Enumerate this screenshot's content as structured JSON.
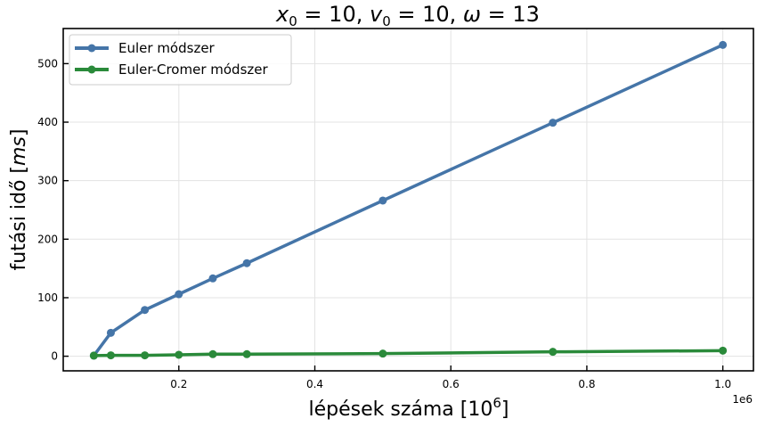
{
  "chart_data": {
    "type": "line",
    "title": "x₀ = 10, v₀ = 10, ω = 13",
    "title_parts": {
      "a": "x",
      "a_sub": "0",
      "a_val": "10",
      "b": "v",
      "b_sub": "0",
      "b_val": "10",
      "c": "ω",
      "c_val": "13"
    },
    "xlabel": "lépések száma [10⁶]",
    "xlabel_parts": {
      "main": "lépések száma [10",
      "sup": "6",
      "end": "]"
    },
    "ylabel": "futási idő [ms]",
    "ylabel_parts": {
      "main": "futási idő [",
      "unit": "ms",
      "end": "]"
    },
    "x_offset_label": "1e6",
    "xlim": [
      30000,
      1045000
    ],
    "ylim": [
      -25,
      560
    ],
    "x_ticks": [
      200000,
      400000,
      600000,
      800000,
      1000000
    ],
    "x_tick_labels": [
      "0.2",
      "0.4",
      "0.6",
      "0.8",
      "1.0"
    ],
    "y_ticks": [
      0,
      100,
      200,
      300,
      400,
      500
    ],
    "y_tick_labels": [
      "0",
      "100",
      "200",
      "300",
      "400",
      "500"
    ],
    "grid": true,
    "legend_position": "top-left",
    "x": [
      75000,
      100000,
      150000,
      200000,
      250000,
      300000,
      500000,
      750000,
      1000000
    ],
    "series": [
      {
        "name": "Euler módszer",
        "color": "#4575a8",
        "values": [
          1,
          40,
          79,
          106,
          133,
          159,
          266,
          399,
          532
        ]
      },
      {
        "name": "Euler-Cromer módszer",
        "color": "#2a8a3a",
        "values": [
          1,
          1.5,
          1.5,
          2.5,
          3.5,
          3.5,
          4.5,
          7.5,
          9.5
        ]
      }
    ]
  }
}
